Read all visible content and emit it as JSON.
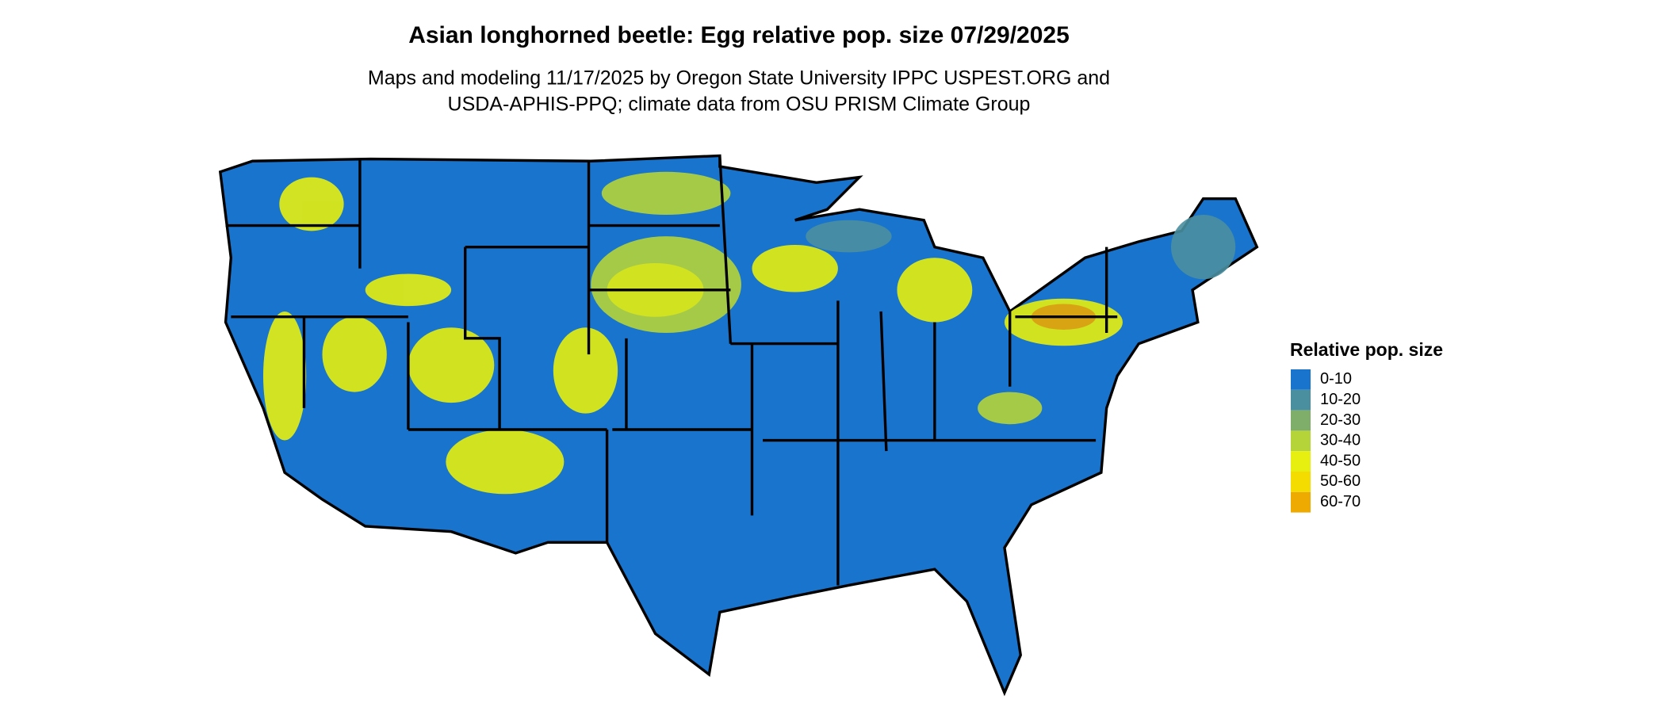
{
  "title": "Asian longhorned beetle: Egg relative pop. size 07/29/2025",
  "subtitle": [
    "Maps and modeling 11/17/2025 by Oregon State University IPPC USPEST.ORG and",
    "USDA-APHIS-PPQ; climate data from OSU PRISM Climate Group"
  ],
  "legend": {
    "title": "Relative pop. size",
    "items": [
      {
        "label": "0-10",
        "color": "#1874cd"
      },
      {
        "label": "10-20",
        "color": "#4a8fa0"
      },
      {
        "label": "20-30",
        "color": "#7fae6a"
      },
      {
        "label": "30-40",
        "color": "#b5d43a"
      },
      {
        "label": "40-50",
        "color": "#e6ef0f"
      },
      {
        "label": "50-60",
        "color": "#f5dc00"
      },
      {
        "label": "60-70",
        "color": "#eeaa00"
      }
    ]
  }
}
